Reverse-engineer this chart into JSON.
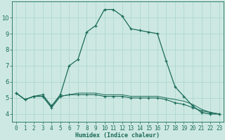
{
  "xlabel": "Humidex (Indice chaleur)",
  "x_ticks": [
    0,
    1,
    2,
    3,
    4,
    5,
    6,
    7,
    8,
    9,
    10,
    11,
    12,
    13,
    14,
    15,
    16,
    17,
    18,
    19,
    20,
    21,
    22,
    23
  ],
  "ylim": [
    3.5,
    11.0
  ],
  "xlim": [
    -0.5,
    23.5
  ],
  "yticks": [
    4,
    5,
    6,
    7,
    8,
    9,
    10
  ],
  "bg_color": "#cde8e2",
  "grid_color": "#a8d4cc",
  "line_color": "#1a6b5a",
  "line1_x": [
    0,
    1,
    2,
    3,
    4,
    5,
    6,
    7,
    8,
    9,
    10,
    11,
    12,
    13,
    14,
    15,
    16,
    17,
    18,
    19,
    20,
    21,
    22,
    23
  ],
  "line1_y": [
    5.3,
    4.9,
    5.1,
    5.2,
    4.5,
    5.2,
    7.0,
    7.4,
    9.1,
    9.5,
    10.5,
    10.5,
    10.1,
    9.3,
    9.2,
    9.1,
    9.0,
    7.3,
    5.7,
    5.1,
    4.5,
    4.1,
    4.0,
    4.0
  ],
  "line2_x": [
    0,
    1,
    2,
    3,
    4,
    5,
    6,
    7,
    8,
    9,
    10,
    11,
    12,
    13,
    14,
    15,
    16,
    17,
    18,
    19,
    20,
    21,
    22,
    23
  ],
  "line2_y": [
    5.3,
    4.9,
    5.1,
    5.1,
    4.4,
    5.1,
    5.2,
    5.2,
    5.2,
    5.2,
    5.1,
    5.1,
    5.1,
    5.0,
    5.0,
    5.0,
    5.0,
    4.9,
    4.7,
    4.6,
    4.4,
    4.2,
    4.1,
    4.0
  ],
  "line3_x": [
    0,
    1,
    2,
    3,
    4,
    5,
    6,
    7,
    8,
    9,
    10,
    11,
    12,
    13,
    14,
    15,
    16,
    17,
    18,
    19,
    20,
    21,
    22,
    23
  ],
  "line3_y": [
    5.3,
    4.9,
    5.1,
    5.1,
    4.4,
    5.1,
    5.2,
    5.3,
    5.3,
    5.3,
    5.2,
    5.2,
    5.2,
    5.1,
    5.1,
    5.1,
    5.1,
    5.0,
    4.9,
    4.8,
    4.6,
    4.3,
    4.1,
    4.0
  ],
  "xlabel_fontsize": 6.0,
  "tick_fontsize": 5.5,
  "ytick_fontsize": 6.0
}
